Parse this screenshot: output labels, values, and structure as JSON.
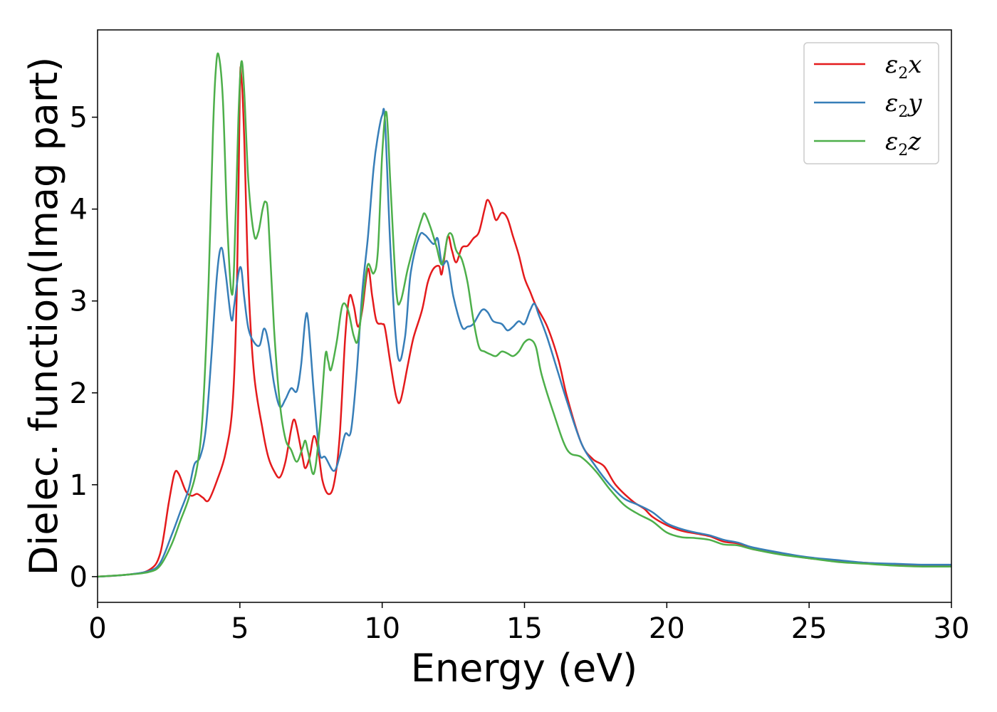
{
  "chart_data": {
    "type": "line",
    "xlabel": "Energy (eV)",
    "ylabel": "Dielec. function(Imag part)",
    "xlim": [
      0,
      30
    ],
    "ylim": [
      -0.28,
      5.95
    ],
    "xticks": [
      "0",
      "5",
      "10",
      "15",
      "20",
      "25",
      "30"
    ],
    "yticks": [
      "0",
      "1",
      "2",
      "3",
      "4",
      "5"
    ],
    "grid": false,
    "legend_position": "top-right",
    "series": [
      {
        "name": "x",
        "color": "#e41a1c",
        "points": [
          [
            0,
            0
          ],
          [
            1,
            0.02
          ],
          [
            1.8,
            0.07
          ],
          [
            2.2,
            0.25
          ],
          [
            2.5,
            0.8
          ],
          [
            2.7,
            1.12
          ],
          [
            2.85,
            1.12
          ],
          [
            3.1,
            0.93
          ],
          [
            3.3,
            0.88
          ],
          [
            3.5,
            0.9
          ],
          [
            3.7,
            0.86
          ],
          [
            3.9,
            0.83
          ],
          [
            4.2,
            1.05
          ],
          [
            4.5,
            1.35
          ],
          [
            4.75,
            1.9
          ],
          [
            4.9,
            3.2
          ],
          [
            5.0,
            5.3
          ],
          [
            5.05,
            5.45
          ],
          [
            5.15,
            4.8
          ],
          [
            5.3,
            3.2
          ],
          [
            5.5,
            2.2
          ],
          [
            5.8,
            1.6
          ],
          [
            6.0,
            1.3
          ],
          [
            6.2,
            1.15
          ],
          [
            6.4,
            1.08
          ],
          [
            6.6,
            1.25
          ],
          [
            6.8,
            1.6
          ],
          [
            6.9,
            1.71
          ],
          [
            7.0,
            1.62
          ],
          [
            7.2,
            1.3
          ],
          [
            7.3,
            1.18
          ],
          [
            7.45,
            1.3
          ],
          [
            7.6,
            1.53
          ],
          [
            7.75,
            1.38
          ],
          [
            7.9,
            1.05
          ],
          [
            8.1,
            0.9
          ],
          [
            8.3,
            1.0
          ],
          [
            8.5,
            1.5
          ],
          [
            8.7,
            2.6
          ],
          [
            8.85,
            3.05
          ],
          [
            9.0,
            2.95
          ],
          [
            9.15,
            2.72
          ],
          [
            9.3,
            2.9
          ],
          [
            9.5,
            3.35
          ],
          [
            9.65,
            3.05
          ],
          [
            9.8,
            2.78
          ],
          [
            10.0,
            2.75
          ],
          [
            10.1,
            2.7
          ],
          [
            10.3,
            2.3
          ],
          [
            10.5,
            1.95
          ],
          [
            10.65,
            1.92
          ],
          [
            10.9,
            2.3
          ],
          [
            11.1,
            2.6
          ],
          [
            11.4,
            2.9
          ],
          [
            11.6,
            3.2
          ],
          [
            11.8,
            3.35
          ],
          [
            12.0,
            3.38
          ],
          [
            12.1,
            3.3
          ],
          [
            12.3,
            3.7
          ],
          [
            12.45,
            3.55
          ],
          [
            12.6,
            3.42
          ],
          [
            12.8,
            3.58
          ],
          [
            13.0,
            3.6
          ],
          [
            13.2,
            3.68
          ],
          [
            13.4,
            3.75
          ],
          [
            13.6,
            4.0
          ],
          [
            13.7,
            4.1
          ],
          [
            13.85,
            4.02
          ],
          [
            14.0,
            3.88
          ],
          [
            14.2,
            3.96
          ],
          [
            14.4,
            3.9
          ],
          [
            14.6,
            3.7
          ],
          [
            14.8,
            3.5
          ],
          [
            15.0,
            3.25
          ],
          [
            15.2,
            3.1
          ],
          [
            15.4,
            2.95
          ],
          [
            15.8,
            2.72
          ],
          [
            16.2,
            2.35
          ],
          [
            16.5,
            1.95
          ],
          [
            17.0,
            1.45
          ],
          [
            17.4,
            1.28
          ],
          [
            17.8,
            1.2
          ],
          [
            18.2,
            1.0
          ],
          [
            18.8,
            0.82
          ],
          [
            19.2,
            0.74
          ],
          [
            19.5,
            0.65
          ],
          [
            20.0,
            0.56
          ],
          [
            20.5,
            0.5
          ],
          [
            21.0,
            0.47
          ],
          [
            21.5,
            0.44
          ],
          [
            22.0,
            0.38
          ],
          [
            22.5,
            0.36
          ],
          [
            23.0,
            0.3
          ],
          [
            24.0,
            0.25
          ],
          [
            25.0,
            0.2
          ],
          [
            26.0,
            0.17
          ],
          [
            27.0,
            0.15
          ],
          [
            28.0,
            0.13
          ],
          [
            29.0,
            0.12
          ],
          [
            30.0,
            0.12
          ]
        ]
      },
      {
        "name": "y",
        "color": "#377eb8",
        "points": [
          [
            0,
            0
          ],
          [
            1,
            0.02
          ],
          [
            1.8,
            0.06
          ],
          [
            2.2,
            0.15
          ],
          [
            2.6,
            0.45
          ],
          [
            2.9,
            0.7
          ],
          [
            3.2,
            0.95
          ],
          [
            3.4,
            1.22
          ],
          [
            3.6,
            1.3
          ],
          [
            3.8,
            1.6
          ],
          [
            4.0,
            2.4
          ],
          [
            4.2,
            3.3
          ],
          [
            4.35,
            3.58
          ],
          [
            4.5,
            3.3
          ],
          [
            4.7,
            2.8
          ],
          [
            4.8,
            2.95
          ],
          [
            4.95,
            3.3
          ],
          [
            5.05,
            3.35
          ],
          [
            5.15,
            3.05
          ],
          [
            5.3,
            2.7
          ],
          [
            5.5,
            2.55
          ],
          [
            5.7,
            2.52
          ],
          [
            5.85,
            2.7
          ],
          [
            6.0,
            2.55
          ],
          [
            6.2,
            2.1
          ],
          [
            6.4,
            1.85
          ],
          [
            6.6,
            1.93
          ],
          [
            6.8,
            2.05
          ],
          [
            7.0,
            2.02
          ],
          [
            7.15,
            2.3
          ],
          [
            7.3,
            2.8
          ],
          [
            7.4,
            2.78
          ],
          [
            7.6,
            2.0
          ],
          [
            7.8,
            1.35
          ],
          [
            8.0,
            1.3
          ],
          [
            8.3,
            1.15
          ],
          [
            8.5,
            1.3
          ],
          [
            8.7,
            1.55
          ],
          [
            8.9,
            1.58
          ],
          [
            9.1,
            2.2
          ],
          [
            9.3,
            3.1
          ],
          [
            9.5,
            3.7
          ],
          [
            9.7,
            4.45
          ],
          [
            9.85,
            4.8
          ],
          [
            10.0,
            5.02
          ],
          [
            10.1,
            4.95
          ],
          [
            10.3,
            3.5
          ],
          [
            10.55,
            2.4
          ],
          [
            10.8,
            2.6
          ],
          [
            11.0,
            3.3
          ],
          [
            11.3,
            3.7
          ],
          [
            11.5,
            3.72
          ],
          [
            11.8,
            3.62
          ],
          [
            11.95,
            3.68
          ],
          [
            12.1,
            3.4
          ],
          [
            12.3,
            3.42
          ],
          [
            12.5,
            3.05
          ],
          [
            12.8,
            2.72
          ],
          [
            13.0,
            2.72
          ],
          [
            13.2,
            2.75
          ],
          [
            13.5,
            2.9
          ],
          [
            13.7,
            2.88
          ],
          [
            13.9,
            2.78
          ],
          [
            14.2,
            2.75
          ],
          [
            14.4,
            2.68
          ],
          [
            14.6,
            2.72
          ],
          [
            14.8,
            2.78
          ],
          [
            15.0,
            2.75
          ],
          [
            15.2,
            2.9
          ],
          [
            15.35,
            2.97
          ],
          [
            15.5,
            2.85
          ],
          [
            15.8,
            2.6
          ],
          [
            16.2,
            2.2
          ],
          [
            16.5,
            1.9
          ],
          [
            17.0,
            1.45
          ],
          [
            17.5,
            1.2
          ],
          [
            18.0,
            1.0
          ],
          [
            18.5,
            0.85
          ],
          [
            19.0,
            0.78
          ],
          [
            19.5,
            0.7
          ],
          [
            20.0,
            0.58
          ],
          [
            20.5,
            0.52
          ],
          [
            21.0,
            0.48
          ],
          [
            21.5,
            0.45
          ],
          [
            22.0,
            0.4
          ],
          [
            22.5,
            0.37
          ],
          [
            23.0,
            0.32
          ],
          [
            24.0,
            0.26
          ],
          [
            25.0,
            0.21
          ],
          [
            26.0,
            0.18
          ],
          [
            27.0,
            0.15
          ],
          [
            28.0,
            0.14
          ],
          [
            29.0,
            0.13
          ],
          [
            30.0,
            0.13
          ]
        ]
      },
      {
        "name": "z",
        "color": "#4daf4a",
        "points": [
          [
            0,
            0
          ],
          [
            1,
            0.02
          ],
          [
            1.8,
            0.05
          ],
          [
            2.2,
            0.12
          ],
          [
            2.6,
            0.35
          ],
          [
            2.9,
            0.6
          ],
          [
            3.2,
            0.85
          ],
          [
            3.5,
            1.2
          ],
          [
            3.7,
            1.8
          ],
          [
            3.9,
            3.2
          ],
          [
            4.05,
            4.8
          ],
          [
            4.15,
            5.5
          ],
          [
            4.25,
            5.68
          ],
          [
            4.4,
            5.2
          ],
          [
            4.55,
            3.9
          ],
          [
            4.7,
            3.1
          ],
          [
            4.8,
            3.4
          ],
          [
            4.95,
            5.0
          ],
          [
            5.05,
            5.6
          ],
          [
            5.15,
            5.3
          ],
          [
            5.3,
            4.3
          ],
          [
            5.5,
            3.72
          ],
          [
            5.65,
            3.75
          ],
          [
            5.8,
            4.0
          ],
          [
            5.9,
            4.08
          ],
          [
            6.0,
            3.9
          ],
          [
            6.2,
            2.7
          ],
          [
            6.4,
            1.9
          ],
          [
            6.6,
            1.5
          ],
          [
            6.8,
            1.38
          ],
          [
            7.0,
            1.25
          ],
          [
            7.2,
            1.4
          ],
          [
            7.3,
            1.48
          ],
          [
            7.4,
            1.35
          ],
          [
            7.6,
            1.12
          ],
          [
            7.8,
            1.6
          ],
          [
            8.0,
            2.4
          ],
          [
            8.1,
            2.35
          ],
          [
            8.2,
            2.25
          ],
          [
            8.4,
            2.55
          ],
          [
            8.6,
            2.95
          ],
          [
            8.8,
            2.9
          ],
          [
            9.0,
            2.62
          ],
          [
            9.15,
            2.58
          ],
          [
            9.35,
            3.1
          ],
          [
            9.5,
            3.4
          ],
          [
            9.7,
            3.3
          ],
          [
            9.85,
            3.55
          ],
          [
            10.0,
            4.6
          ],
          [
            10.15,
            5.05
          ],
          [
            10.3,
            4.2
          ],
          [
            10.5,
            3.1
          ],
          [
            10.65,
            3.0
          ],
          [
            10.9,
            3.35
          ],
          [
            11.2,
            3.7
          ],
          [
            11.4,
            3.9
          ],
          [
            11.5,
            3.95
          ],
          [
            11.7,
            3.8
          ],
          [
            11.9,
            3.6
          ],
          [
            12.1,
            3.4
          ],
          [
            12.3,
            3.7
          ],
          [
            12.45,
            3.72
          ],
          [
            12.6,
            3.55
          ],
          [
            12.8,
            3.45
          ],
          [
            13.0,
            3.2
          ],
          [
            13.2,
            2.8
          ],
          [
            13.4,
            2.5
          ],
          [
            13.6,
            2.45
          ],
          [
            13.8,
            2.42
          ],
          [
            14.0,
            2.4
          ],
          [
            14.2,
            2.45
          ],
          [
            14.4,
            2.43
          ],
          [
            14.6,
            2.4
          ],
          [
            14.8,
            2.45
          ],
          [
            15.0,
            2.55
          ],
          [
            15.2,
            2.58
          ],
          [
            15.4,
            2.5
          ],
          [
            15.6,
            2.2
          ],
          [
            16.0,
            1.8
          ],
          [
            16.5,
            1.38
          ],
          [
            17.0,
            1.3
          ],
          [
            17.5,
            1.15
          ],
          [
            18.0,
            0.95
          ],
          [
            18.5,
            0.78
          ],
          [
            19.0,
            0.68
          ],
          [
            19.5,
            0.6
          ],
          [
            20.0,
            0.48
          ],
          [
            20.5,
            0.43
          ],
          [
            21.0,
            0.42
          ],
          [
            21.5,
            0.4
          ],
          [
            22.0,
            0.35
          ],
          [
            22.5,
            0.34
          ],
          [
            23.0,
            0.3
          ],
          [
            24.0,
            0.24
          ],
          [
            25.0,
            0.2
          ],
          [
            26.0,
            0.16
          ],
          [
            27.0,
            0.14
          ],
          [
            28.0,
            0.12
          ],
          [
            29.0,
            0.11
          ],
          [
            30.0,
            0.11
          ]
        ]
      }
    ]
  }
}
